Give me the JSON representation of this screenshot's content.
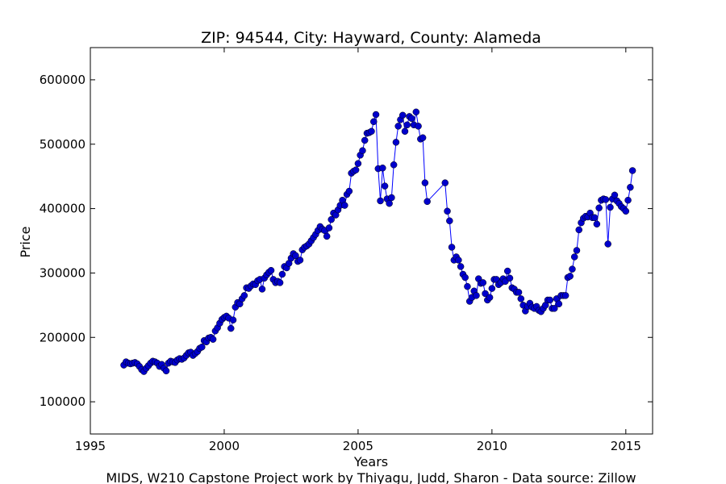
{
  "chart_data": {
    "type": "line",
    "title": "ZIP: 94544, City: Hayward, County: Alameda",
    "x_label": "Years",
    "y_label": "Price",
    "footnote": "MIDS, W210 Capstone Project work by Thiyagu, Judd, Sharon  -  Data source: Zillow",
    "color": "#0000ff",
    "marker_color": "#0000cc",
    "xlim": [
      1995,
      2016
    ],
    "xticks": [
      1995,
      2000,
      2005,
      2010,
      2015
    ],
    "ylim": [
      50000,
      650000
    ],
    "yticks": [
      100000,
      200000,
      300000,
      400000,
      500000,
      600000
    ],
    "x": [
      1996.25,
      1996.333,
      1996.417,
      1996.5,
      1996.583,
      1996.667,
      1996.75,
      1996.833,
      1996.917,
      1997,
      1997.083,
      1997.167,
      1997.25,
      1997.333,
      1997.417,
      1997.5,
      1997.583,
      1997.667,
      1997.75,
      1997.833,
      1997.917,
      1998,
      1998.083,
      1998.167,
      1998.25,
      1998.333,
      1998.417,
      1998.5,
      1998.583,
      1998.667,
      1998.75,
      1998.833,
      1998.917,
      1999,
      1999.083,
      1999.167,
      1999.25,
      1999.333,
      1999.417,
      1999.5,
      1999.583,
      1999.667,
      1999.75,
      1999.833,
      1999.917,
      2000,
      2000.083,
      2000.167,
      2000.25,
      2000.333,
      2000.417,
      2000.5,
      2000.583,
      2000.667,
      2000.75,
      2000.833,
      2000.917,
      2001,
      2001.083,
      2001.167,
      2001.25,
      2001.333,
      2001.417,
      2001.5,
      2001.583,
      2001.667,
      2001.75,
      2001.833,
      2001.917,
      2002,
      2002.083,
      2002.167,
      2002.25,
      2002.333,
      2002.417,
      2002.5,
      2002.583,
      2002.667,
      2002.75,
      2002.833,
      2002.917,
      2003,
      2003.083,
      2003.167,
      2003.25,
      2003.333,
      2003.417,
      2003.5,
      2003.583,
      2003.667,
      2003.75,
      2003.833,
      2003.917,
      2004,
      2004.083,
      2004.167,
      2004.25,
      2004.333,
      2004.417,
      2004.5,
      2004.583,
      2004.667,
      2004.75,
      2004.833,
      2004.917,
      2005,
      2005.083,
      2005.167,
      2005.25,
      2005.333,
      2005.417,
      2005.5,
      2005.583,
      2005.667,
      2005.75,
      2005.833,
      2005.917,
      2006,
      2006.083,
      2006.167,
      2006.25,
      2006.333,
      2006.417,
      2006.5,
      2006.583,
      2006.667,
      2006.75,
      2006.833,
      2006.917,
      2007,
      2007.083,
      2007.167,
      2007.25,
      2007.333,
      2007.417,
      2007.5,
      2007.583,
      2008.25,
      2008.333,
      2008.417,
      2008.5,
      2008.583,
      2008.667,
      2008.75,
      2008.833,
      2008.917,
      2009,
      2009.083,
      2009.167,
      2009.25,
      2009.333,
      2009.417,
      2009.5,
      2009.583,
      2009.667,
      2009.75,
      2009.833,
      2009.917,
      2010,
      2010.083,
      2010.167,
      2010.25,
      2010.333,
      2010.417,
      2010.5,
      2010.583,
      2010.667,
      2010.75,
      2010.833,
      2010.917,
      2011,
      2011.083,
      2011.167,
      2011.25,
      2011.333,
      2011.417,
      2011.5,
      2011.583,
      2011.667,
      2011.75,
      2011.833,
      2011.917,
      2012,
      2012.083,
      2012.167,
      2012.25,
      2012.333,
      2012.417,
      2012.5,
      2012.583,
      2012.667,
      2012.75,
      2012.833,
      2012.917,
      2013,
      2013.083,
      2013.167,
      2013.25,
      2013.333,
      2013.417,
      2013.5,
      2013.583,
      2013.667,
      2013.75,
      2013.833,
      2013.917,
      2014,
      2014.083,
      2014.167,
      2014.25,
      2014.333,
      2014.417,
      2014.5,
      2014.583,
      2014.667,
      2014.75,
      2014.833,
      2014.917,
      2015,
      2015.083,
      2015.167,
      2015.25
    ],
    "values": [
      157000,
      162000,
      160000,
      159000,
      160000,
      161000,
      159000,
      155000,
      150000,
      147000,
      152000,
      156000,
      160000,
      163000,
      162000,
      160000,
      155000,
      158000,
      152000,
      148000,
      160000,
      163000,
      162000,
      161000,
      165000,
      167000,
      166000,
      168000,
      172000,
      176000,
      177000,
      172000,
      175000,
      178000,
      183000,
      185000,
      195000,
      193000,
      199000,
      200000,
      197000,
      210000,
      215000,
      222000,
      228000,
      231000,
      233000,
      230000,
      214000,
      227000,
      247000,
      254000,
      252000,
      260000,
      265000,
      277000,
      276000,
      280000,
      283000,
      282000,
      288000,
      290000,
      275000,
      292000,
      297000,
      301000,
      304000,
      290000,
      285000,
      287000,
      285000,
      298000,
      310000,
      308000,
      315000,
      323000,
      330000,
      327000,
      318000,
      320000,
      336000,
      340000,
      342000,
      345000,
      350000,
      355000,
      360000,
      366000,
      372000,
      368000,
      366000,
      357000,
      370000,
      383000,
      393000,
      390000,
      398000,
      405000,
      413000,
      405000,
      422000,
      427000,
      455000,
      458000,
      460000,
      470000,
      483000,
      490000,
      506000,
      517000,
      518000,
      520000,
      535000,
      546000,
      462000,
      412000,
      463000,
      435000,
      415000,
      408000,
      417000,
      468000,
      503000,
      528000,
      538000,
      545000,
      520000,
      530000,
      543000,
      540000,
      530000,
      550000,
      528000,
      508000,
      510000,
      440000,
      411000,
      440000,
      396000,
      381000,
      340000,
      320000,
      325000,
      320000,
      310000,
      298000,
      293000,
      279000,
      256000,
      262000,
      272000,
      265000,
      291000,
      284000,
      285000,
      268000,
      258000,
      262000,
      276000,
      290000,
      290000,
      282000,
      285000,
      291000,
      287000,
      303000,
      292000,
      277000,
      275000,
      270000,
      270000,
      260000,
      250000,
      241000,
      248000,
      253000,
      247000,
      245000,
      248000,
      242000,
      240000,
      245000,
      250000,
      258000,
      258000,
      245000,
      245000,
      260000,
      252000,
      265000,
      265000,
      265000,
      293000,
      295000,
      306000,
      325000,
      335000,
      367000,
      378000,
      385000,
      388000,
      387000,
      393000,
      386000,
      386000,
      376000,
      401000,
      413000,
      415000,
      414000,
      345000,
      402000,
      415000,
      421000,
      412000,
      408000,
      403000,
      400000,
      396000,
      413000,
      433000,
      459000
    ]
  }
}
